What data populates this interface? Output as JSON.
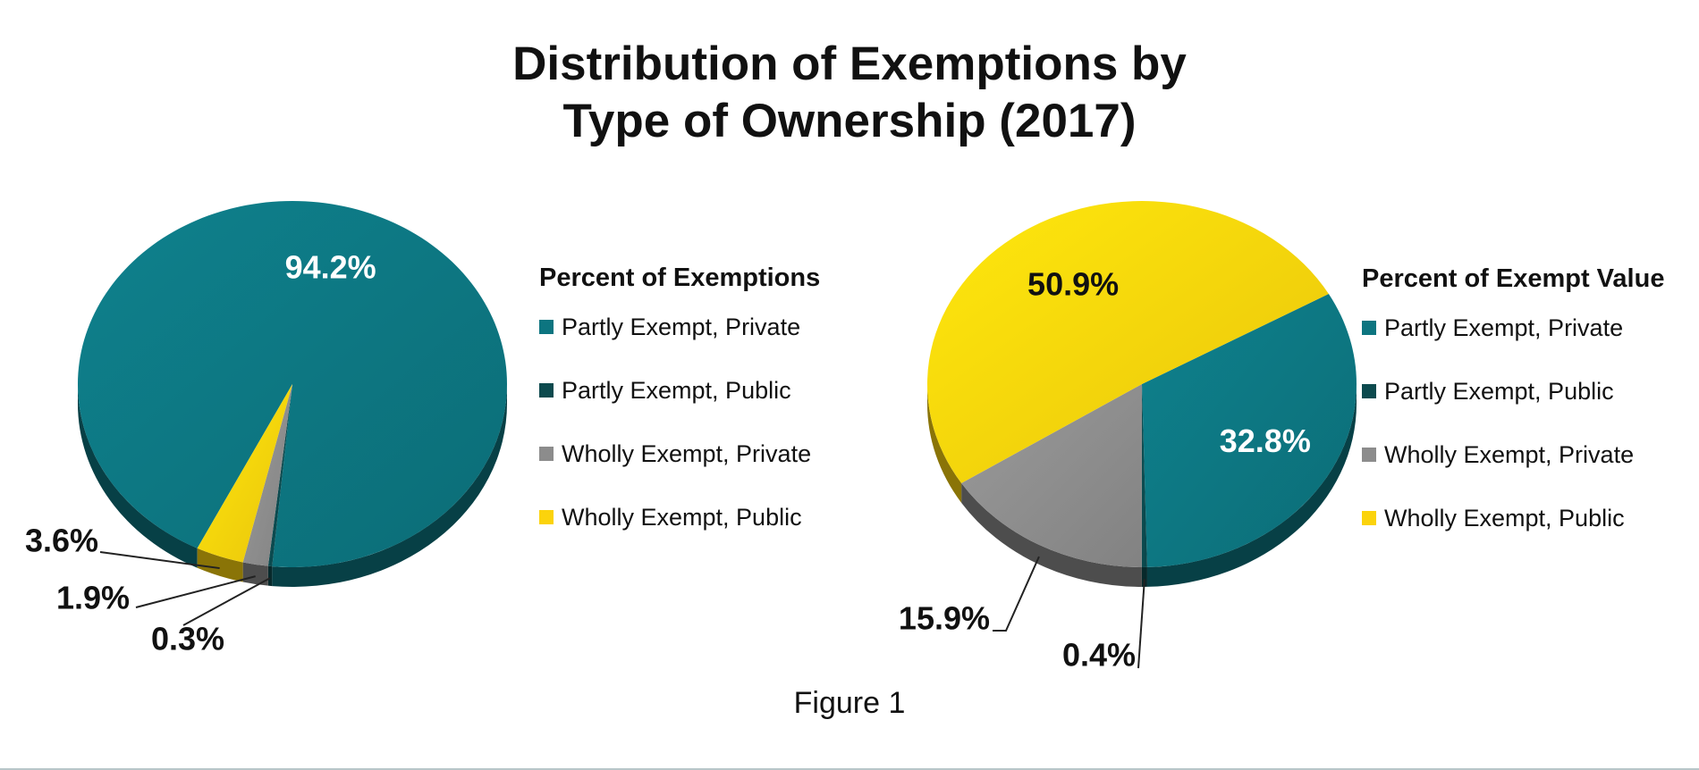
{
  "title_lines": [
    "Distribution of Exemptions by",
    "Type of Ownership (2017)"
  ],
  "caption": "Figure 1",
  "chart_data": [
    {
      "type": "pie",
      "title": "Percent of Exemptions",
      "categories": [
        "Partly Exempt, Private",
        "Partly Exempt, Public",
        "Wholly Exempt, Private",
        "Wholly Exempt, Public"
      ],
      "values": [
        94.2,
        0.3,
        1.9,
        3.6
      ],
      "labels": [
        "94.2%",
        "0.3%",
        "1.9%",
        "3.6%"
      ],
      "colors": [
        "#0d7580",
        "#0c4a4e",
        "#8c8c8c",
        "#fbd30c"
      ],
      "legend_position": "right"
    },
    {
      "type": "pie",
      "title": "Percent of Exempt Value",
      "categories": [
        "Partly Exempt, Private",
        "Partly Exempt, Public",
        "Wholly Exempt, Private",
        "Wholly Exempt, Public"
      ],
      "values": [
        32.8,
        0.4,
        15.9,
        50.9
      ],
      "labels": [
        "32.8%",
        "0.4%",
        "15.9%",
        "50.9%"
      ],
      "colors": [
        "#0d7580",
        "#0c4a4e",
        "#8c8c8c",
        "#fbd30c"
      ],
      "legend_position": "right"
    }
  ]
}
